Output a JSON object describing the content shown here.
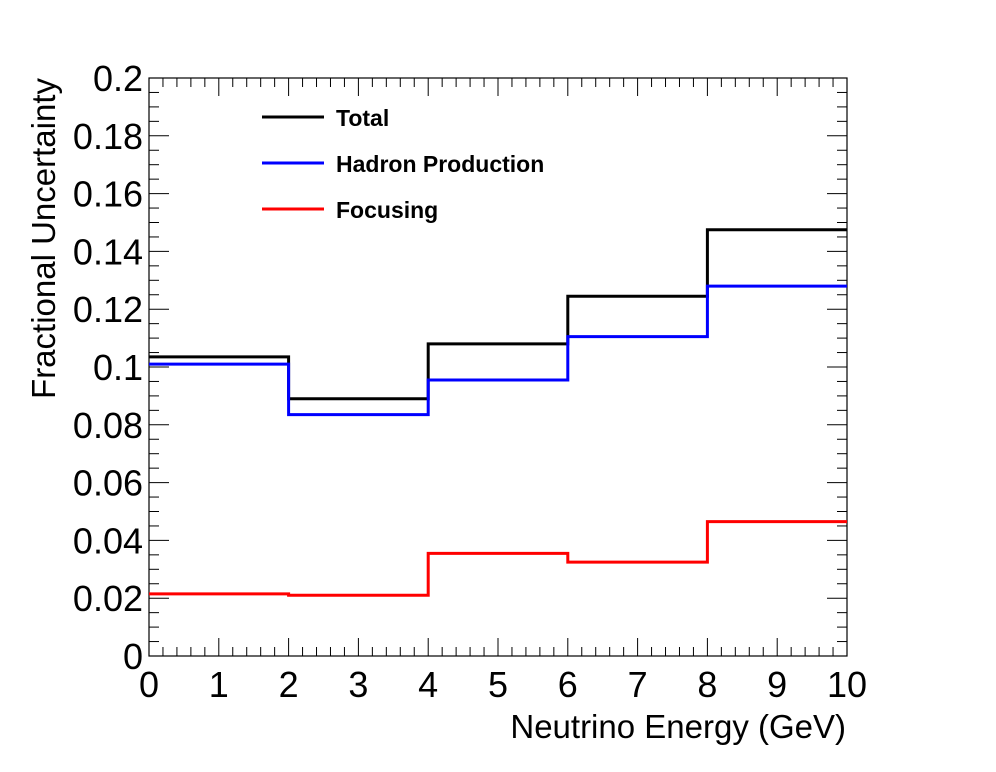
{
  "chart_data": {
    "type": "line",
    "style": "step-histogram",
    "xlabel": "Neutrino Energy (GeV)",
    "ylabel": "Fractional Uncertainty",
    "xlim": [
      0,
      10
    ],
    "ylim": [
      0,
      0.2
    ],
    "x_ticks": [
      "0",
      "1",
      "2",
      "3",
      "4",
      "5",
      "6",
      "7",
      "8",
      "9",
      "10"
    ],
    "y_ticks": [
      "0",
      "0.02",
      "0.04",
      "0.06",
      "0.08",
      "0.1",
      "0.12",
      "0.14",
      "0.16",
      "0.18",
      "0.2"
    ],
    "bin_edges": [
      0,
      2,
      4,
      6,
      8,
      10
    ],
    "grid": false,
    "legend_position": "top-left",
    "series": [
      {
        "name": "Total",
        "color": "#000000",
        "values": [
          0.1035,
          0.089,
          0.108,
          0.1245,
          0.1475
        ]
      },
      {
        "name": "Hadron Production",
        "color": "#0000ff",
        "values": [
          0.101,
          0.0835,
          0.0955,
          0.1105,
          0.128
        ]
      },
      {
        "name": "Focusing",
        "color": "#ff0000",
        "values": [
          0.0215,
          0.021,
          0.0355,
          0.0325,
          0.0465
        ]
      }
    ]
  }
}
